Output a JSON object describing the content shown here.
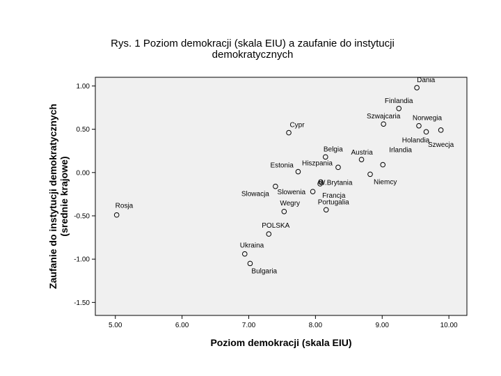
{
  "chart_data": {
    "type": "scatter",
    "title_lines": [
      "Rys. 1 Poziom demokracji (skala EIU) a zaufanie do instytucji",
      "demokratycznych"
    ],
    "xlabel": "Poziom demokracji (skala EIU)",
    "ylabel_lines": [
      "Zaufanie do instytucji demokratycznych",
      "(srednie krajowe)"
    ],
    "xlim": [
      4.7,
      10.27
    ],
    "ylim": [
      -1.65,
      1.1
    ],
    "x_ticks": [
      5,
      6,
      7,
      8,
      9,
      10
    ],
    "x_tick_labels": [
      "5.00",
      "6.00",
      "7.00",
      "8.00",
      "9.00",
      "10.00"
    ],
    "y_ticks": [
      1,
      0.5,
      0,
      -0.5,
      -1,
      -1.5
    ],
    "y_tick_labels": [
      "1.00",
      "0.50",
      "0.00",
      "-0.50",
      "-1.00",
      "-1.50"
    ],
    "grid": false,
    "plot_background": "#f0f0f0",
    "points": [
      {
        "label": "Dania",
        "x": 9.52,
        "y": 0.98
      },
      {
        "label": "Finlandia",
        "x": 9.25,
        "y": 0.74
      },
      {
        "label": "Szwajcaria",
        "x": 9.02,
        "y": 0.56
      },
      {
        "label": "Norwegia",
        "x": 9.55,
        "y": 0.54
      },
      {
        "label": "Holandia",
        "x": 9.66,
        "y": 0.47
      },
      {
        "label": "Szwecja",
        "x": 9.88,
        "y": 0.49
      },
      {
        "label": "Cypr",
        "x": 7.6,
        "y": 0.46
      },
      {
        "label": "Belgia",
        "x": 8.15,
        "y": 0.18
      },
      {
        "label": "Austria",
        "x": 8.69,
        "y": 0.15
      },
      {
        "label": "Irlandia",
        "x": 9.01,
        "y": 0.09
      },
      {
        "label": "Estonia",
        "x": 7.74,
        "y": 0.01
      },
      {
        "label": "Hiszpania",
        "x": 8.34,
        "y": 0.06
      },
      {
        "label": "Niemcy",
        "x": 8.82,
        "y": -0.02
      },
      {
        "label": "W.Brytania",
        "x": 8.08,
        "y": -0.11
      },
      {
        "label": "Francja",
        "x": 8.07,
        "y": -0.13
      },
      {
        "label": "Slowacja",
        "x": 7.4,
        "y": -0.16
      },
      {
        "label": "Slowenia",
        "x": 7.96,
        "y": -0.22
      },
      {
        "label": "Wegry",
        "x": 7.53,
        "y": -0.45
      },
      {
        "label": "Portugalia",
        "x": 8.16,
        "y": -0.43
      },
      {
        "label": "Rosja",
        "x": 5.02,
        "y": -0.49
      },
      {
        "label": "POLSKA",
        "x": 7.3,
        "y": -0.71
      },
      {
        "label": "Ukraina",
        "x": 6.94,
        "y": -0.94
      },
      {
        "label": "Bulgaria",
        "x": 7.02,
        "y": -1.05
      }
    ]
  }
}
